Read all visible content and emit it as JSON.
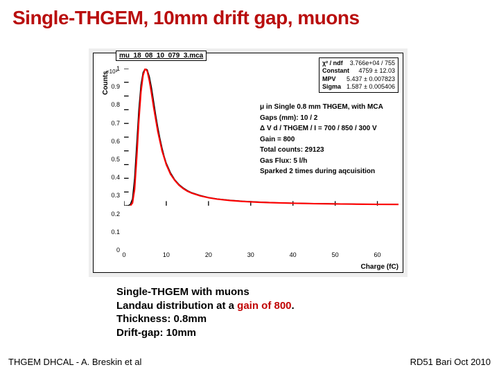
{
  "title": {
    "text": "Single-THGEM, 10mm drift gap, muons",
    "color": "#b90e0e"
  },
  "chart": {
    "type": "landau-histogram-with-fit",
    "dataset_label": "mu_18_08_10_079_3.mca",
    "stats": {
      "chi2_ndf_label": "χ² / ndf",
      "chi2_ndf_value": "3.766e+04 / 755",
      "constant_label": "Constant",
      "constant_value": "4759 ± 12.03",
      "mpv_label": "MPV",
      "mpv_value": "5.437 ± 0.007823",
      "sigma_label": "Sigma",
      "sigma_value": "1.587 ± 0.005406"
    },
    "info_lines": [
      "μ in Single 0.8 mm THGEM, with MCA",
      "Gaps (mm): 10 / 2",
      "Δ V d / THGEM / I = 700 / 850 / 300 V",
      "Gain = 800",
      "Total counts: 29123",
      "Gas Flux: 5 l/h",
      "Sparked 2 times during aqcuisition"
    ],
    "ylabel": "Counts",
    "yscale_text": "×10³",
    "xlabel": "Charge (fC)",
    "xlim": [
      0,
      65
    ],
    "ylim": [
      0,
      1.0
    ],
    "xticks": [
      0,
      10,
      20,
      30,
      40,
      50,
      60
    ],
    "yticks": [
      0,
      0.1,
      0.2,
      0.3,
      0.4,
      0.5,
      0.6,
      0.7,
      0.8,
      0.9,
      1
    ],
    "hist_color": "#000000",
    "fit_color": "#ff0000",
    "background_color": "#ffffff",
    "frame_gray": "#eeeeee",
    "hist_points": [
      [
        0.5,
        0.0
      ],
      [
        1,
        0.0
      ],
      [
        1.5,
        0.01
      ],
      [
        2,
        0.05
      ],
      [
        2.5,
        0.2
      ],
      [
        3,
        0.45
      ],
      [
        3.5,
        0.7
      ],
      [
        4,
        0.88
      ],
      [
        4.5,
        0.97
      ],
      [
        5,
        1.0
      ],
      [
        5.5,
        0.99
      ],
      [
        6,
        0.94
      ],
      [
        6.5,
        0.86
      ],
      [
        7,
        0.76
      ],
      [
        7.5,
        0.66
      ],
      [
        8,
        0.57
      ],
      [
        8.5,
        0.49
      ],
      [
        9,
        0.42
      ],
      [
        9.5,
        0.36
      ],
      [
        10,
        0.31
      ],
      [
        11,
        0.24
      ],
      [
        12,
        0.19
      ],
      [
        13,
        0.155
      ],
      [
        14,
        0.13
      ],
      [
        15,
        0.11
      ],
      [
        16,
        0.095
      ],
      [
        18,
        0.075
      ],
      [
        20,
        0.06
      ],
      [
        22,
        0.05
      ],
      [
        25,
        0.04
      ],
      [
        28,
        0.033
      ],
      [
        32,
        0.027
      ],
      [
        36,
        0.022
      ],
      [
        40,
        0.019
      ],
      [
        45,
        0.016
      ],
      [
        50,
        0.014
      ],
      [
        55,
        0.012
      ],
      [
        60,
        0.011
      ],
      [
        65,
        0.01
      ]
    ],
    "fit_points": [
      [
        1.5,
        0.0
      ],
      [
        2,
        0.02
      ],
      [
        2.5,
        0.12
      ],
      [
        3,
        0.35
      ],
      [
        3.5,
        0.62
      ],
      [
        4,
        0.83
      ],
      [
        4.5,
        0.95
      ],
      [
        5,
        1.0
      ],
      [
        5.5,
        0.98
      ],
      [
        6,
        0.91
      ],
      [
        6.5,
        0.82
      ],
      [
        7,
        0.72
      ],
      [
        7.5,
        0.63
      ],
      [
        8,
        0.54
      ],
      [
        8.5,
        0.47
      ],
      [
        9,
        0.4
      ],
      [
        9.5,
        0.35
      ],
      [
        10,
        0.3
      ],
      [
        11,
        0.23
      ],
      [
        12,
        0.185
      ],
      [
        13,
        0.15
      ],
      [
        14,
        0.125
      ],
      [
        15,
        0.106
      ],
      [
        16,
        0.092
      ],
      [
        18,
        0.072
      ],
      [
        20,
        0.058
      ],
      [
        22,
        0.048
      ],
      [
        25,
        0.038
      ],
      [
        28,
        0.031
      ],
      [
        32,
        0.025
      ],
      [
        36,
        0.021
      ],
      [
        40,
        0.018
      ],
      [
        45,
        0.015
      ],
      [
        50,
        0.013
      ],
      [
        55,
        0.011
      ],
      [
        60,
        0.01
      ],
      [
        65,
        0.009
      ]
    ]
  },
  "caption": {
    "line1": "Single-THGEM with muons",
    "line2a": "Landau distribution at a ",
    "line2b": "gain of 800",
    "line2c": ".",
    "line3": "Thickness: 0.8mm",
    "line4": "Drift-gap: 10mm"
  },
  "footer": {
    "left": "THGEM DHCAL - A. Breskin et al",
    "right": "RD51 Bari Oct 2010"
  }
}
